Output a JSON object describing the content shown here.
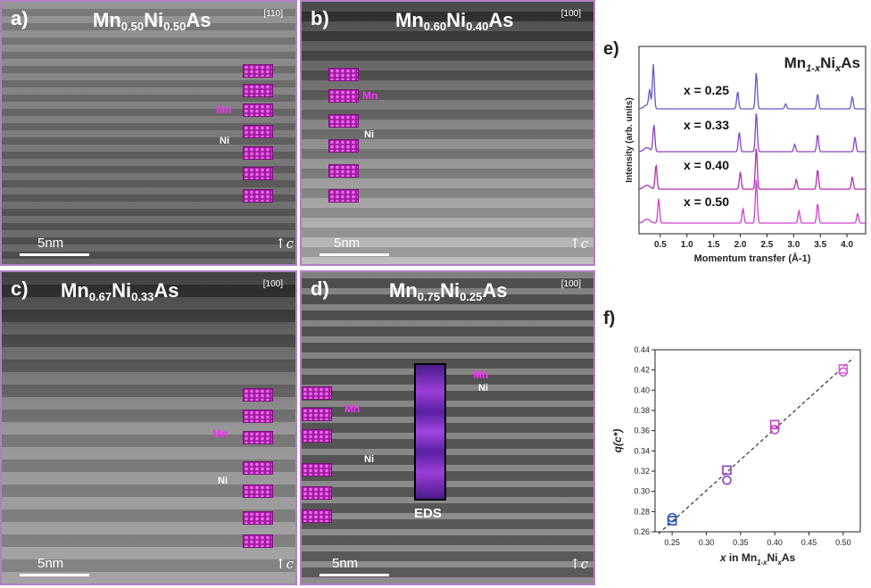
{
  "panels": {
    "a": {
      "label": "a)",
      "formula": {
        "base1": "Mn",
        "sub1": "0.50",
        "base2": "Ni",
        "sub2": "0.50",
        "base3": "As"
      },
      "zone": "[110]",
      "scale": "5nm",
      "axis": "c",
      "mn_label": "Mn",
      "ni_label": "Ni"
    },
    "b": {
      "label": "b)",
      "formula": {
        "base1": "Mn",
        "sub1": "0.60",
        "base2": "Ni",
        "sub2": "0.40",
        "base3": "As"
      },
      "zone": "[100]",
      "scale": "5nm",
      "axis": "c",
      "mn_label": "Mn",
      "ni_label": "Ni"
    },
    "c": {
      "label": "c)",
      "formula": {
        "base1": "Mn",
        "sub1": "0.67",
        "base2": "Ni",
        "sub2": "0.33",
        "base3": "As"
      },
      "zone": "[100]",
      "scale": "5nm",
      "axis": "c",
      "mn_label": "Mn",
      "ni_label": "Ni"
    },
    "d": {
      "label": "d)",
      "formula": {
        "base1": "Mn",
        "sub1": "0.75",
        "base2": "Ni",
        "sub2": "0.25",
        "base3": "As"
      },
      "zone": "[100]",
      "scale": "5nm",
      "axis": "c",
      "mn_label": "Mn",
      "ni_label": "Ni",
      "mn_label_2": "Mn",
      "ni_label_2": "Ni",
      "eds_label": "EDS"
    }
  },
  "colors": {
    "accent": "#d64fd6",
    "mn_annotation": "#ff30ff",
    "frame": "#b07fc8"
  },
  "chart_data": [
    {
      "id": "e",
      "panel_label": "e)",
      "type": "line",
      "title": "Mn1-xNixAs",
      "xlabel": "Momentum transfer (Å-1)",
      "ylabel": "Intensity (arb. units)",
      "xlim": [
        0.1,
        4.35
      ],
      "xticks": [
        0.5,
        1.0,
        1.5,
        2.0,
        2.5,
        3.0,
        3.5,
        4.0
      ],
      "xtick_labels": [
        "0.5",
        "1.0",
        "1.5",
        "2.0",
        "2.5",
        "3.0",
        "3.5",
        "4.0"
      ],
      "series": [
        {
          "name": "x = 0.25",
          "color": "#6b55c8",
          "peaks": [
            [
              0.3,
              0.35
            ],
            [
              0.37,
              0.9
            ],
            [
              1.95,
              0.35
            ],
            [
              2.3,
              0.75
            ],
            [
              2.85,
              0.1
            ],
            [
              3.45,
              0.3
            ],
            [
              4.1,
              0.25
            ]
          ]
        },
        {
          "name": "x = 0.33",
          "color": "#8c42c4",
          "peaks": [
            [
              0.38,
              0.55
            ],
            [
              1.98,
              0.4
            ],
            [
              2.3,
              0.8
            ],
            [
              3.02,
              0.15
            ],
            [
              3.45,
              0.35
            ],
            [
              4.15,
              0.3
            ]
          ]
        },
        {
          "name": "x = 0.40",
          "color": "#b02fb0",
          "peaks": [
            [
              0.42,
              0.5
            ],
            [
              2.0,
              0.35
            ],
            [
              2.3,
              0.85
            ],
            [
              3.05,
              0.2
            ],
            [
              3.45,
              0.4
            ],
            [
              4.1,
              0.25
            ]
          ]
        },
        {
          "name": "x = 0.50",
          "color": "#d040d0",
          "peaks": [
            [
              0.47,
              0.5
            ],
            [
              2.05,
              0.3
            ],
            [
              2.3,
              0.9
            ],
            [
              3.1,
              0.25
            ],
            [
              3.45,
              0.4
            ],
            [
              4.2,
              0.2
            ]
          ]
        }
      ]
    },
    {
      "id": "f",
      "panel_label": "f)",
      "type": "scatter",
      "xlabel": "x in Mn1-xNixAs",
      "ylabel": "q(c*)",
      "xlim": [
        0.225,
        0.525
      ],
      "ylim": [
        0.26,
        0.44
      ],
      "xticks": [
        0.25,
        0.3,
        0.35,
        0.4,
        0.45,
        0.5
      ],
      "xtick_labels": [
        "0.25",
        "0.30",
        "0.35",
        "0.40",
        "0.45",
        "0.50"
      ],
      "yticks": [
        0.26,
        0.28,
        0.3,
        0.32,
        0.34,
        0.36,
        0.38,
        0.4,
        0.42,
        0.44
      ],
      "ytick_labels": [
        "0.26",
        "0.28",
        "0.30",
        "0.32",
        "0.34",
        "0.36",
        "0.38",
        "0.40",
        "0.42",
        "0.44"
      ],
      "points": [
        {
          "x": 0.25,
          "y": 0.271,
          "marker": "square",
          "color": "#2a4db8"
        },
        {
          "x": 0.25,
          "y": 0.274,
          "marker": "circle",
          "color": "#2a4db8"
        },
        {
          "x": 0.33,
          "y": 0.321,
          "marker": "square",
          "color": "#8a3fc0"
        },
        {
          "x": 0.33,
          "y": 0.311,
          "marker": "circle",
          "color": "#8a3fc0"
        },
        {
          "x": 0.4,
          "y": 0.366,
          "marker": "square",
          "color": "#c040c0"
        },
        {
          "x": 0.4,
          "y": 0.361,
          "marker": "circle",
          "color": "#c040c0"
        },
        {
          "x": 0.5,
          "y": 0.421,
          "marker": "square",
          "color": "#d858d8"
        },
        {
          "x": 0.5,
          "y": 0.418,
          "marker": "circle",
          "color": "#d858d8"
        }
      ],
      "fit": {
        "x": [
          0.23,
          0.515
        ],
        "y": [
          0.258,
          0.432
        ],
        "style": "dashed",
        "color": "#333333"
      }
    }
  ]
}
